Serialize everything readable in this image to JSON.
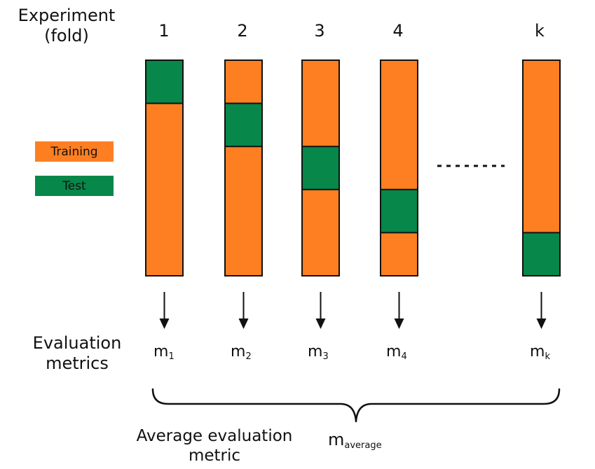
{
  "header": {
    "experiment_line1": "Experiment",
    "experiment_line2": "(fold)"
  },
  "folds": [
    {
      "label": "1",
      "metric_base": "m",
      "metric_sub": "1",
      "test_block": 1
    },
    {
      "label": "2",
      "metric_base": "m",
      "metric_sub": "2",
      "test_block": 2
    },
    {
      "label": "3",
      "metric_base": "m",
      "metric_sub": "3",
      "test_block": 3
    },
    {
      "label": "4",
      "metric_base": "m",
      "metric_sub": "4",
      "test_block": 4
    },
    {
      "label": "k",
      "metric_base": "m",
      "metric_sub": "k",
      "test_block": 5
    }
  ],
  "blocks_per_fold": 5,
  "legend": {
    "training_label": "Training",
    "test_label": "Test"
  },
  "metrics_label_line1": "Evaluation",
  "metrics_label_line2": "metrics",
  "average": {
    "label_line1": "Average evaluation",
    "label_line2": "metric",
    "symbol_base": "m",
    "symbol_sub": "average"
  },
  "colors": {
    "training": "#fd7f21",
    "test": "#07874a",
    "border": "#111111"
  }
}
